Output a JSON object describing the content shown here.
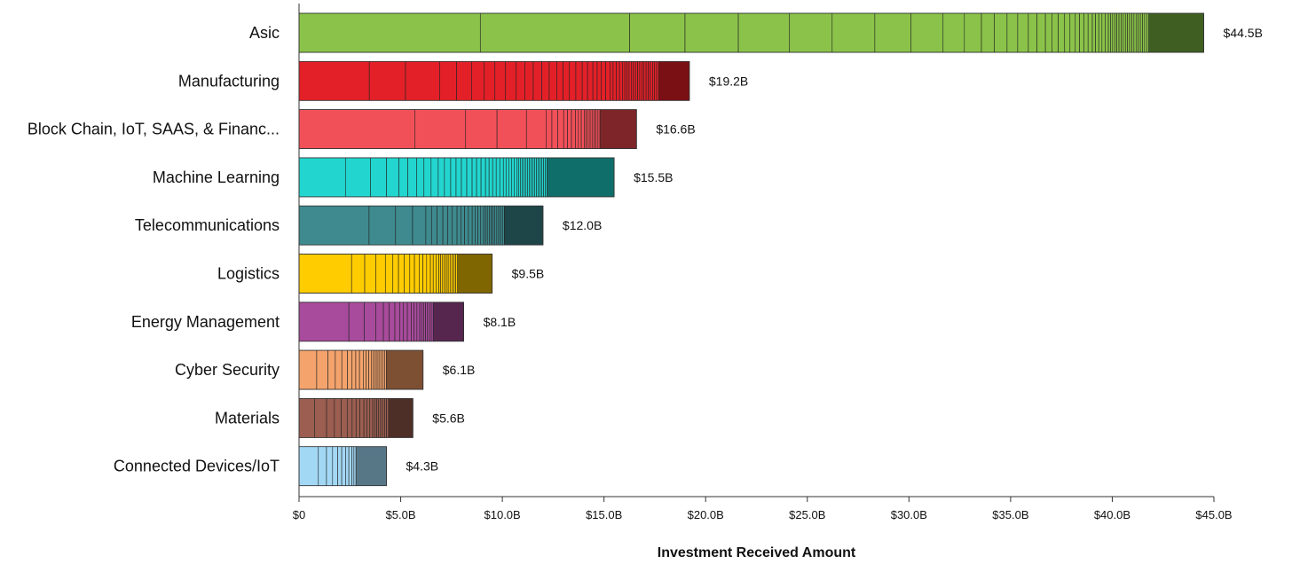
{
  "chart_data": {
    "type": "bar",
    "orientation": "horizontal",
    "stacked": true,
    "title": "",
    "xlabel": "Investment Received Amount",
    "ylabel": "",
    "xlim": [
      0,
      45
    ],
    "x_ticks": [
      0,
      5,
      10,
      15,
      20,
      25,
      30,
      35,
      40,
      45
    ],
    "x_tick_labels": [
      "$0",
      "$5.0B",
      "$10.0B",
      "$15.0B",
      "$20.0B",
      "$25.0B",
      "$30.0B",
      "$35.0B",
      "$40.0B",
      "$45.0B"
    ],
    "grid": false,
    "legend": "none",
    "categories": [
      {
        "name": "Asic",
        "total": 44.5,
        "label": "$44.5B",
        "color": "#8bc34a",
        "tail_color": "#3f5f22",
        "segments": [
          8.5,
          7.0,
          2.6,
          2.5,
          2.4,
          2.0,
          2.0,
          1.7,
          1.5,
          1.0,
          0.8,
          0.6,
          0.6,
          0.5,
          0.5,
          0.4,
          0.4,
          0.3,
          0.3,
          0.3,
          0.25,
          0.25,
          0.2,
          0.2,
          0.2,
          0.2,
          0.15,
          0.15,
          0.15,
          0.15,
          0.15,
          0.1,
          0.1,
          0.1,
          0.1,
          0.1,
          0.1,
          0.1,
          0.1,
          0.1,
          0.1,
          0.1,
          0.1,
          0.1,
          0.1,
          0.1,
          0.1,
          0.1,
          0.1,
          0.1
        ],
        "tail": 2.7
      },
      {
        "name": "Manufacturing",
        "total": 19.2,
        "label": "$19.2B",
        "color": "#e32028",
        "tail_color": "#7a1014",
        "segments": [
          3.3,
          1.7,
          1.6,
          0.8,
          0.7,
          0.6,
          0.5,
          0.5,
          0.5,
          0.4,
          0.4,
          0.4,
          0.35,
          0.35,
          0.3,
          0.3,
          0.3,
          0.3,
          0.25,
          0.25,
          0.2,
          0.2,
          0.2,
          0.2,
          0.15,
          0.15,
          0.15,
          0.15,
          0.1,
          0.1,
          0.1,
          0.1,
          0.1,
          0.1,
          0.1,
          0.1,
          0.1,
          0.1,
          0.1,
          0.1,
          0.1,
          0.1,
          0.1,
          0.1,
          0.1
        ],
        "tail": 1.5
      },
      {
        "name": "Block Chain, IoT, SAAS, & Financ...",
        "total": 16.6,
        "label": "$16.6B",
        "color": "#f25059",
        "tail_color": "#7d2528",
        "segments": [
          5.9,
          2.6,
          1.6,
          1.5,
          1.0,
          0.3,
          0.3,
          0.3,
          0.2,
          0.2,
          0.2,
          0.15,
          0.15,
          0.15,
          0.1,
          0.1,
          0.1,
          0.1,
          0.1,
          0.1,
          0.1,
          0.1
        ],
        "tail": 1.8
      },
      {
        "name": "Machine Learning",
        "total": 15.5,
        "label": "$15.5B",
        "color": "#22d6cf",
        "tail_color": "#106e6a",
        "segments": [
          2.6,
          1.4,
          0.9,
          0.7,
          0.5,
          0.5,
          0.4,
          0.4,
          0.4,
          0.35,
          0.35,
          0.3,
          0.3,
          0.3,
          0.3,
          0.25,
          0.25,
          0.25,
          0.2,
          0.2,
          0.2,
          0.2,
          0.2,
          0.15,
          0.15,
          0.15,
          0.15,
          0.15,
          0.1,
          0.1,
          0.1,
          0.1,
          0.1,
          0.1,
          0.1,
          0.1,
          0.1,
          0.1,
          0.1,
          0.1,
          0.1,
          0.1,
          0.1,
          0.1,
          0.1
        ],
        "tail": 3.3
      },
      {
        "name": "Telecommunications",
        "total": 12.0,
        "label": "$12.0B",
        "color": "#3e8a8e",
        "tail_color": "#1e4548",
        "segments": [
          3.7,
          1.4,
          0.9,
          0.7,
          0.3,
          0.3,
          0.3,
          0.25,
          0.25,
          0.25,
          0.2,
          0.2,
          0.2,
          0.2,
          0.15,
          0.15,
          0.15,
          0.15,
          0.1,
          0.1,
          0.1,
          0.1,
          0.1,
          0.1,
          0.1,
          0.1,
          0.1,
          0.1,
          0.1
        ],
        "tail": 1.9
      },
      {
        "name": "Logistics",
        "total": 9.5,
        "label": "$9.5B",
        "color": "#ffcc00",
        "tail_color": "#806600",
        "segments": [
          2.8,
          0.7,
          0.6,
          0.5,
          0.4,
          0.3,
          0.3,
          0.3,
          0.25,
          0.25,
          0.2,
          0.2,
          0.2,
          0.15,
          0.15,
          0.15,
          0.1,
          0.1,
          0.1,
          0.1,
          0.1,
          0.1,
          0.1,
          0.1,
          0.1,
          0.1
        ],
        "tail": 1.7
      },
      {
        "name": "Energy Management",
        "total": 8.1,
        "label": "$8.1B",
        "color": "#a84b9c",
        "tail_color": "#56264f",
        "segments": [
          2.6,
          0.8,
          0.6,
          0.4,
          0.3,
          0.3,
          0.25,
          0.2,
          0.2,
          0.2,
          0.15,
          0.15,
          0.15,
          0.1,
          0.1,
          0.1,
          0.1,
          0.1,
          0.1,
          0.1
        ],
        "tail": 1.5
      },
      {
        "name": "Cyber Security",
        "total": 6.1,
        "label": "$6.1B",
        "color": "#f4a36c",
        "tail_color": "#7d5033",
        "segments": [
          0.95,
          0.6,
          0.4,
          0.35,
          0.3,
          0.25,
          0.2,
          0.2,
          0.2,
          0.15,
          0.15,
          0.15,
          0.1,
          0.1,
          0.1,
          0.1,
          0.1,
          0.1,
          0.1,
          0.1
        ],
        "tail": 1.8
      },
      {
        "name": "Materials",
        "total": 5.6,
        "label": "$5.6B",
        "color": "#9b5e50",
        "tail_color": "#4e2f28",
        "segments": [
          0.8,
          0.6,
          0.4,
          0.35,
          0.3,
          0.25,
          0.2,
          0.2,
          0.2,
          0.15,
          0.15,
          0.15,
          0.1,
          0.1,
          0.1,
          0.1,
          0.1,
          0.1,
          0.1,
          0.1
        ],
        "tail": 1.2
      },
      {
        "name": "Connected Devices/IoT",
        "total": 4.3,
        "label": "$4.3B",
        "color": "#a3d8f5",
        "tail_color": "#577787",
        "segments": [
          0.95,
          0.4,
          0.3,
          0.25,
          0.2,
          0.2,
          0.15,
          0.15,
          0.1,
          0.1
        ],
        "tail": 1.5
      }
    ]
  }
}
